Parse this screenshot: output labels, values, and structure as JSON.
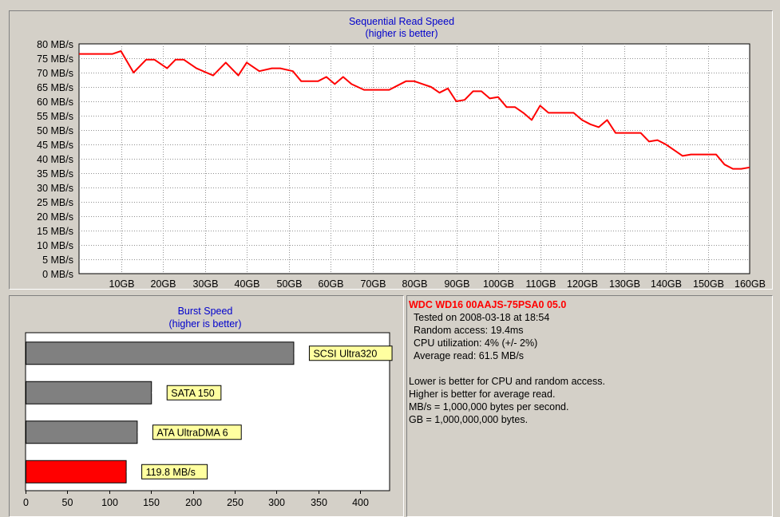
{
  "chart_data": [
    {
      "type": "line",
      "title": "Sequential Read Speed",
      "subtitle": "(higher is better)",
      "x_unit": "GB",
      "y_unit": "MB/s",
      "xlim": [
        0,
        160
      ],
      "ylim": [
        0,
        80
      ],
      "x_ticks": [
        10,
        20,
        30,
        40,
        50,
        60,
        70,
        80,
        90,
        100,
        110,
        120,
        130,
        140,
        150,
        160
      ],
      "x_tick_labels": [
        "10GB",
        "20GB",
        "30GB",
        "40GB",
        "50GB",
        "60GB",
        "70GB",
        "80GB",
        "90GB",
        "100GB",
        "110GB",
        "120GB",
        "130GB",
        "140GB",
        "150GB",
        "160GB"
      ],
      "y_ticks": [
        0,
        5,
        10,
        15,
        20,
        25,
        30,
        35,
        40,
        45,
        50,
        55,
        60,
        65,
        70,
        75,
        80
      ],
      "y_tick_labels": [
        "0 MB/s",
        "5 MB/s",
        "10 MB/s",
        "15 MB/s",
        "20 MB/s",
        "25 MB/s",
        "30 MB/s",
        "35 MB/s",
        "40 MB/s",
        "45 MB/s",
        "50 MB/s",
        "55 MB/s",
        "60 MB/s",
        "65 MB/s",
        "70 MB/s",
        "75 MB/s",
        "80 MB/s"
      ],
      "grid": true,
      "color": "#ff0000",
      "x": [
        0,
        8,
        10,
        13,
        16,
        18,
        21,
        23,
        25,
        28,
        32,
        35,
        38,
        40,
        43,
        46,
        48,
        51,
        53,
        57,
        59,
        61,
        63,
        65,
        68,
        72,
        74,
        76,
        78,
        80,
        82,
        84,
        86,
        88,
        90,
        92,
        94,
        96,
        98,
        100,
        102,
        104,
        106,
        108,
        110,
        112,
        114,
        116,
        118,
        120,
        122,
        124,
        126,
        128,
        130,
        132,
        134,
        136,
        138,
        140,
        142,
        144,
        146,
        148,
        150,
        152,
        154,
        156,
        158,
        160
      ],
      "y": [
        76.5,
        76.5,
        77.5,
        70,
        74.5,
        74.5,
        71.5,
        74.5,
        74.5,
        71.5,
        69,
        73.5,
        69,
        73.5,
        70.5,
        71.5,
        71.5,
        70.5,
        67,
        67,
        68.5,
        66,
        68.5,
        66,
        64,
        64,
        64,
        65.5,
        67,
        67,
        66,
        65,
        63,
        64.5,
        60,
        60.5,
        63.5,
        63.5,
        61,
        61.5,
        58,
        58,
        56,
        53.5,
        58.5,
        56,
        56,
        56,
        56,
        53.5,
        52,
        51,
        53.5,
        49,
        49,
        49,
        49,
        46,
        46.5,
        45,
        43,
        41,
        41.5,
        41.5,
        41.5,
        41.5,
        38,
        36.5,
        36.5,
        37
      ]
    },
    {
      "type": "bar",
      "orientation": "horizontal",
      "title": "Burst Speed",
      "subtitle": "(higher is better)",
      "xlim": [
        0,
        435
      ],
      "x_ticks": [
        0,
        50,
        100,
        150,
        200,
        250,
        300,
        350,
        400
      ],
      "x_tick_labels": [
        "0",
        "50",
        "100",
        "150",
        "200",
        "250",
        "300",
        "350",
        "400"
      ],
      "categories": [
        "SCSI Ultra320",
        "SATA 150",
        "ATA UltraDMA 6",
        "119.8 MB/s"
      ],
      "values": [
        320,
        150,
        133,
        119.8
      ],
      "colors": [
        "#808080",
        "#808080",
        "#808080",
        "#ff0000"
      ]
    }
  ],
  "info": {
    "title": "WDC WD16 00AAJS-75PSA0 05.0",
    "tested": "Tested on 2008-03-18 at 18:54",
    "random_access": "Random access: 19.4ms",
    "cpu": "CPU utilization: 4% (+/- 2%)",
    "average": "Average read: 61.5 MB/s",
    "note1": "Lower is better for CPU and random access.",
    "note2": "Higher is better for average read.",
    "note3": "MB/s = 1,000,000 bytes per second.",
    "note4": "GB = 1,000,000,000 bytes."
  }
}
